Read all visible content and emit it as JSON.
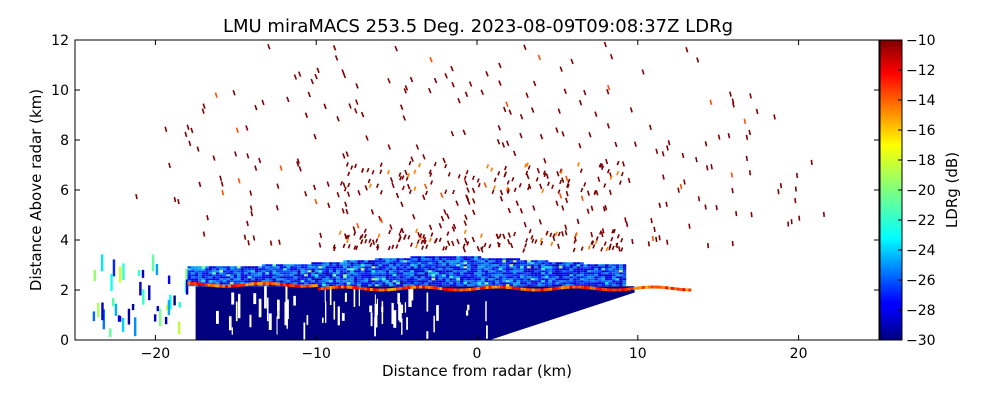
{
  "chart_data": {
    "type": "heatmap",
    "title": "LMU miraMACS 253.5 Deg. 2023-08-09T09:08:37Z  LDRg",
    "xlabel": "Distance from radar (km)",
    "ylabel": "Distance Above radar  (km)",
    "xlim": [
      -25,
      25
    ],
    "ylim": [
      0,
      12
    ],
    "x_ticks": [
      -20,
      -10,
      0,
      10,
      20
    ],
    "x_tick_labels": [
      "−20",
      "−10",
      "0",
      "10",
      "20"
    ],
    "y_ticks": [
      0,
      2,
      4,
      6,
      8,
      10,
      12
    ],
    "y_tick_labels": [
      "0",
      "2",
      "4",
      "6",
      "8",
      "10",
      "12"
    ],
    "colorbar": {
      "label": "LDRg (dB)",
      "range": [
        -30,
        -10
      ],
      "ticks": [
        -30,
        -28,
        -26,
        -24,
        -22,
        -20,
        -18,
        -16,
        -14,
        -12,
        -10
      ],
      "tick_labels": [
        "−30",
        "−28",
        "−26",
        "−24",
        "−22",
        "−20",
        "−18",
        "−16",
        "−14",
        "−12",
        "−10"
      ],
      "colormap": "jet"
    },
    "regions": [
      {
        "name": "low-ldr-base",
        "description_value_dB": -30,
        "x_range_km": [
          -18,
          10
        ],
        "y_range_km": [
          0,
          2.3
        ]
      },
      {
        "name": "cloud-layer",
        "value_range_dB": [
          -29,
          -24
        ],
        "x_range_km": [
          -18,
          9
        ],
        "y_range_km": [
          2.1,
          3.4
        ]
      },
      {
        "name": "bright-band",
        "value_range_dB": [
          -16,
          -12
        ],
        "x_range_km": [
          -18,
          13
        ],
        "y_range_km": [
          2.0,
          2.5
        ]
      },
      {
        "name": "upper-speckle",
        "value_dB": -10,
        "x_range_km": [
          -24,
          23
        ],
        "y_range_km": [
          3.5,
          12
        ]
      }
    ]
  }
}
